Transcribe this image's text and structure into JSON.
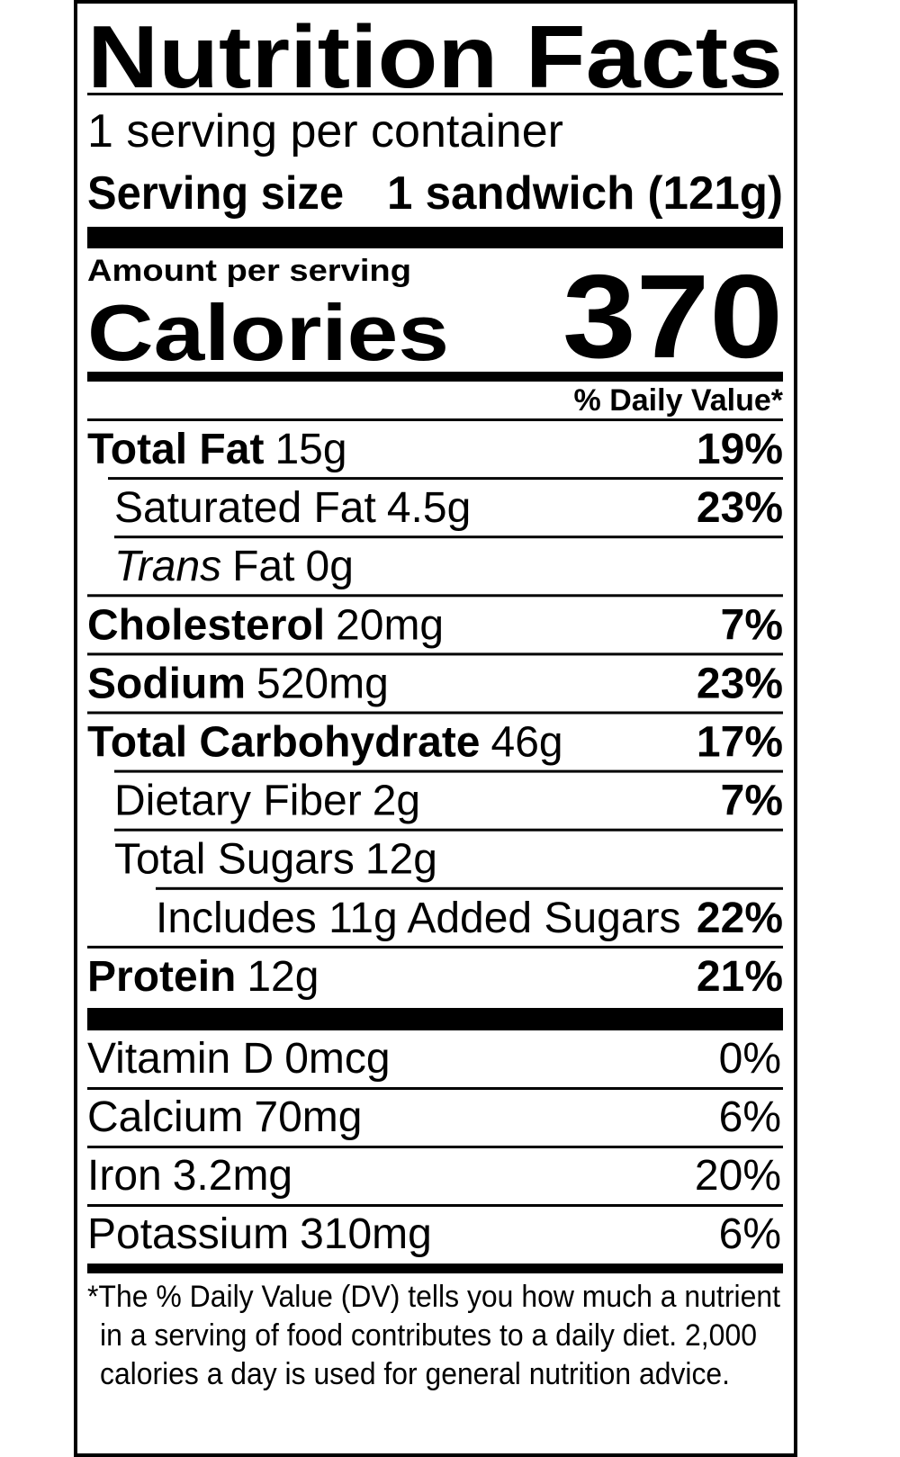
{
  "header": {
    "title": "Nutrition Facts",
    "servings": "1 serving per container",
    "serving_size_label": "Serving size",
    "serving_size": "1 sandwich (121g)"
  },
  "calories": {
    "amount_per_serving": "Amount per serving",
    "label": "Calories",
    "value": "370"
  },
  "dv_header": "% Daily Value*",
  "nutrients": [
    {
      "name": "Total Fat",
      "amount": "15g",
      "dv": "19%"
    },
    {
      "name": "Saturated Fat",
      "amount": "4.5g",
      "dv": "23%"
    },
    {
      "italic": "Trans",
      "name": "Fat",
      "amount": "0g"
    },
    {
      "name": "Cholesterol",
      "amount": "20mg",
      "dv": "7%"
    },
    {
      "name": "Sodium",
      "amount": "520mg",
      "dv": "23%"
    },
    {
      "name": "Total Carbohydrate",
      "amount": "46g",
      "dv": "17%"
    },
    {
      "name": "Dietary Fiber",
      "amount": "2g",
      "dv": "7%"
    },
    {
      "name": "Total Sugars",
      "amount": "12g"
    },
    {
      "name": "Includes 11g Added Sugars",
      "dv": "22%"
    },
    {
      "name": "Protein",
      "amount": "12g",
      "dv": "21%"
    }
  ],
  "vitamins": [
    {
      "name": "Vitamin D",
      "amount": "0mcg",
      "dv": "0%"
    },
    {
      "name": "Calcium",
      "amount": "70mg",
      "dv": "6%"
    },
    {
      "name": "Iron",
      "amount": "3.2mg",
      "dv": "20%"
    },
    {
      "name": "Potassium",
      "amount": "310mg",
      "dv": "6%"
    }
  ],
  "footnote": [
    "*The % Daily Value (DV) tells you how much a nutrient",
    "in a serving of food contributes to a daily diet. 2,000",
    "calories a day is used for general nutrition advice."
  ]
}
